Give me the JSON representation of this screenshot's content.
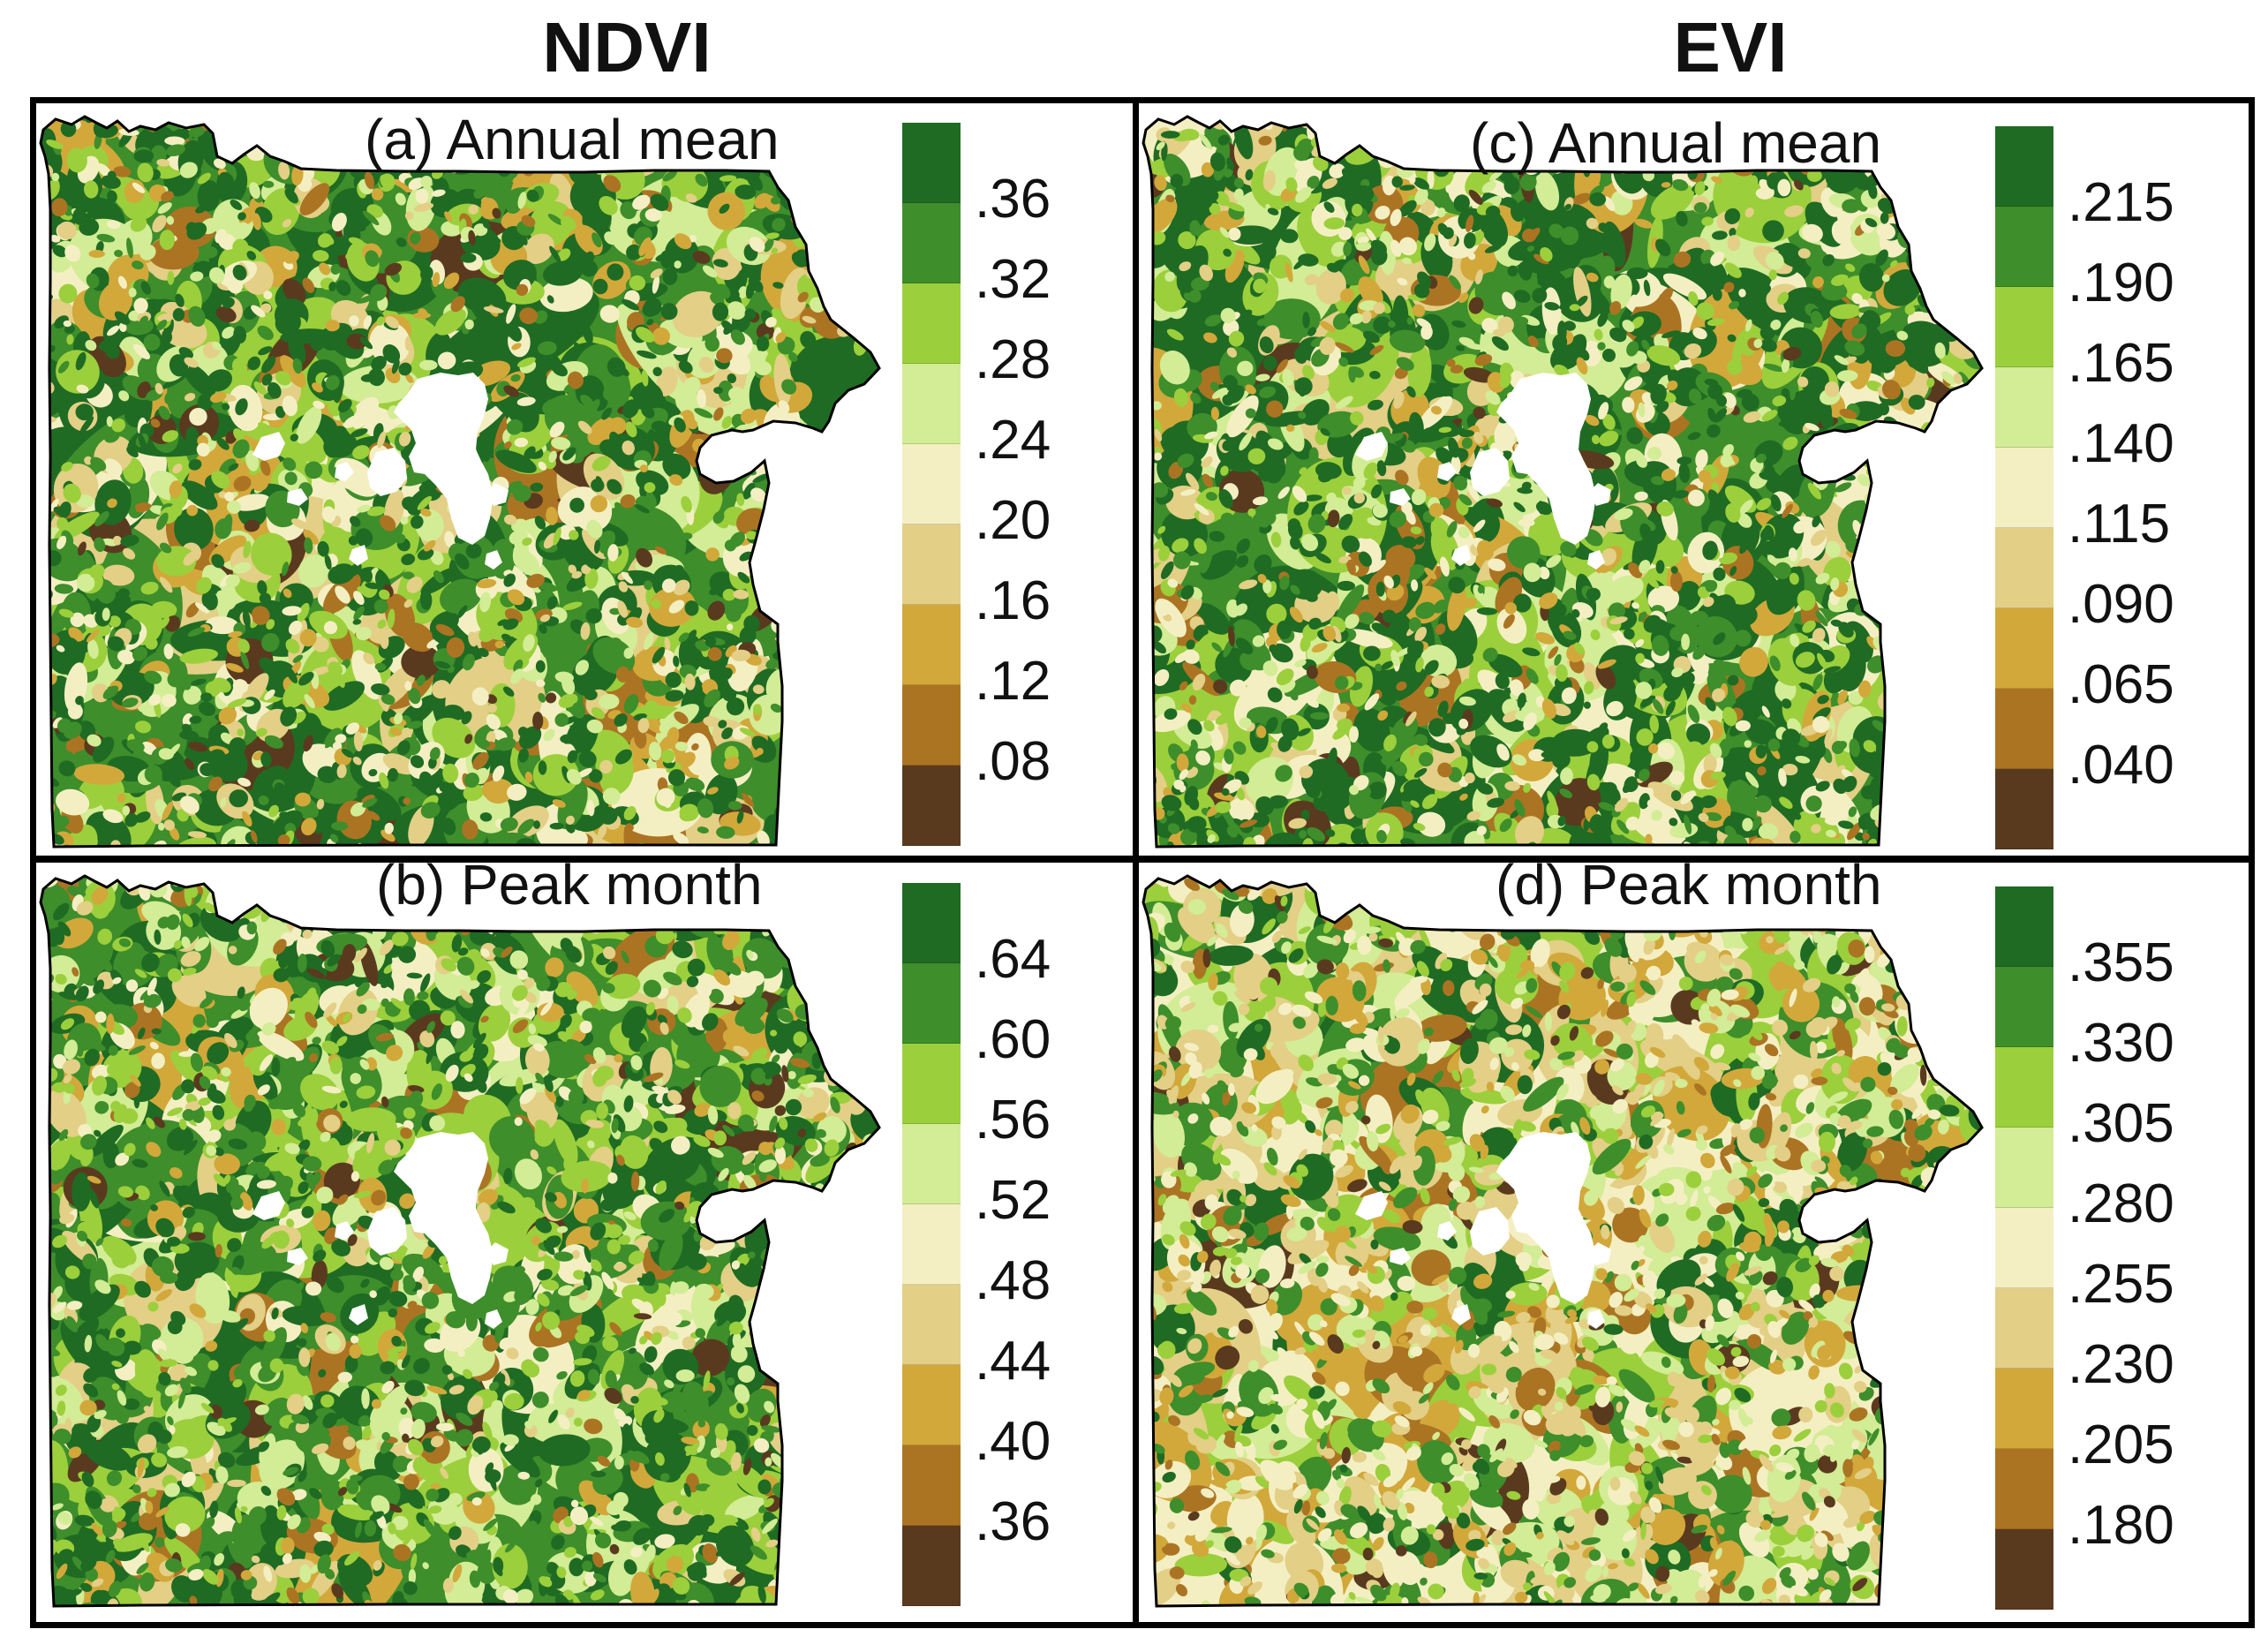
{
  "titles": {
    "left": "NDVI",
    "right": "EVI"
  },
  "palette": [
    "#1f6b23",
    "#3e8e2b",
    "#9ccf3c",
    "#d3ec96",
    "#f4efc3",
    "#e3cf86",
    "#d2a83b",
    "#ab7423",
    "#5a3a1e"
  ],
  "panels": {
    "a": {
      "label": "(a) Annual mean",
      "ticks": [
        ".36",
        ".32",
        ".28",
        ".24",
        ".20",
        ".16",
        ".12",
        ".08"
      ]
    },
    "b": {
      "label": "(b) Peak month",
      "ticks": [
        ".64",
        ".60",
        ".56",
        ".52",
        ".48",
        ".44",
        ".40",
        ".36"
      ]
    },
    "c": {
      "label": "(c) Annual mean",
      "ticks": [
        ".215",
        ".190",
        ".165",
        ".140",
        ".115",
        ".090",
        ".065",
        ".040"
      ]
    },
    "d": {
      "label": "(d) Peak month",
      "ticks": [
        ".355",
        ".330",
        ".305",
        ".280",
        ".255",
        ".230",
        ".205",
        ".180"
      ]
    }
  }
}
